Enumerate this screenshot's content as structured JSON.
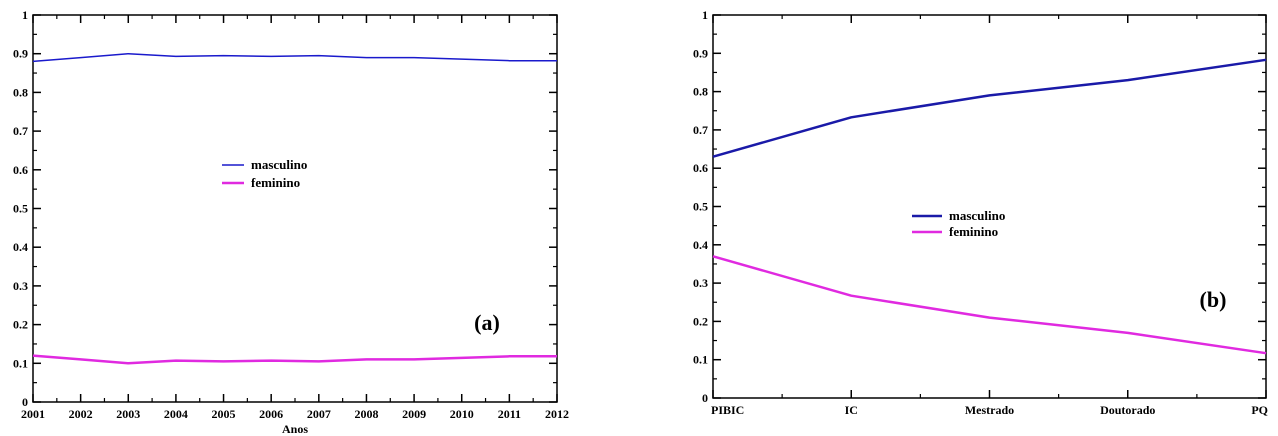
{
  "chart_data": [
    {
      "type": "line",
      "panel_label": "(a)",
      "xlabel": "Anos",
      "ylabel": "",
      "x": [
        2001,
        2002,
        2003,
        2004,
        2005,
        2006,
        2007,
        2008,
        2009,
        2010,
        2011,
        2012
      ],
      "xlim": [
        2001,
        2012
      ],
      "ylim": [
        0,
        1
      ],
      "y_ticks": [
        0,
        0.1,
        0.2,
        0.3,
        0.4,
        0.5,
        0.6,
        0.7,
        0.8,
        0.9,
        1
      ],
      "x_tick_labels": [
        "2001",
        "2002",
        "2003",
        "2004",
        "2005",
        "2006",
        "2007",
        "2008",
        "2009",
        "2010",
        "2011",
        "2012"
      ],
      "y_tick_labels": [
        "0",
        "0.1",
        "0.2",
        "0.3",
        "0.4",
        "0.5",
        "0.6",
        "0.7",
        "0.8",
        "0.9",
        "1"
      ],
      "legend_position": "center",
      "grid": false,
      "series": [
        {
          "name": "masculino",
          "color": "#1a1acc",
          "values": [
            0.88,
            0.89,
            0.9,
            0.893,
            0.895,
            0.893,
            0.895,
            0.89,
            0.89,
            0.886,
            0.882,
            0.882
          ]
        },
        {
          "name": "feminino",
          "color": "#e02ae0",
          "values": [
            0.12,
            0.11,
            0.1,
            0.107,
            0.105,
            0.107,
            0.105,
            0.11,
            0.11,
            0.114,
            0.118,
            0.118
          ]
        }
      ]
    },
    {
      "type": "line",
      "panel_label": "(b)",
      "xlabel": "",
      "ylabel": "",
      "categories": [
        "PIBIC",
        "IC",
        "Mestrado",
        "Doutorado",
        "PQ"
      ],
      "ylim": [
        0,
        1
      ],
      "y_ticks": [
        0,
        0.1,
        0.2,
        0.3,
        0.4,
        0.5,
        0.6,
        0.7,
        0.8,
        0.9,
        1
      ],
      "y_tick_labels": [
        "0",
        "0.1",
        "0.2",
        "0.3",
        "0.4",
        "0.5",
        "0.6",
        "0.7",
        "0.8",
        "0.9",
        "1"
      ],
      "legend_position": "center-left",
      "grid": false,
      "series": [
        {
          "name": "masculino",
          "color": "#1a1aa8",
          "values": [
            0.63,
            0.733,
            0.79,
            0.83,
            0.883
          ]
        },
        {
          "name": "feminino",
          "color": "#e02ae0",
          "values": [
            0.37,
            0.267,
            0.21,
            0.17,
            0.117
          ]
        }
      ]
    }
  ]
}
